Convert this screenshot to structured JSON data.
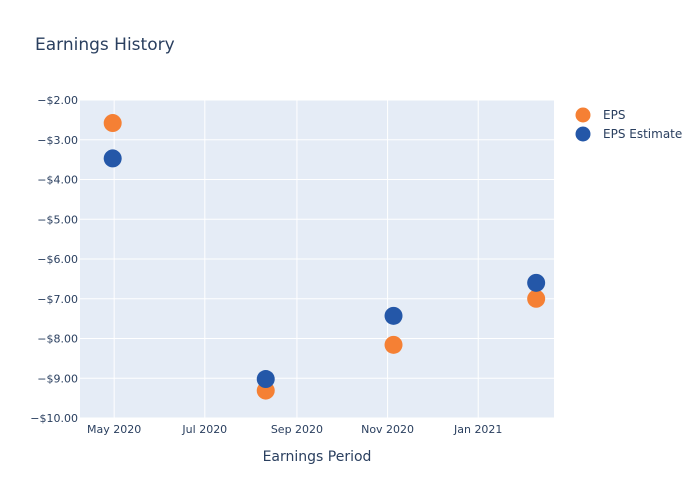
{
  "chart_data": {
    "type": "scatter",
    "title": "Earnings History",
    "xlabel": "Earnings Period",
    "ylabel": "",
    "x_ticks": [
      "May 2020",
      "Jul 2020",
      "Sep 2020",
      "Nov 2020",
      "Jan 2021"
    ],
    "x_tick_dates": [
      "2020-05-01",
      "2020-07-01",
      "2020-09-01",
      "2020-11-01",
      "2021-01-01"
    ],
    "xlim": [
      "2020-04-08",
      "2021-02-21"
    ],
    "y_ticks": [
      "−$2.00",
      "−$3.00",
      "−$4.00",
      "−$5.00",
      "−$6.00",
      "−$7.00",
      "−$8.00",
      "−$9.00",
      "−$10.00"
    ],
    "y_tick_values": [
      -2,
      -3,
      -4,
      -5,
      -6,
      -7,
      -8,
      -9,
      -10
    ],
    "ylim": [
      -10,
      -2
    ],
    "grid": true,
    "legend_position": "top-right",
    "series": [
      {
        "name": "EPS",
        "color": "#f58034",
        "points": [
          {
            "x": "2020-04-30",
            "y": -2.58
          },
          {
            "x": "2020-08-11",
            "y": -9.31
          },
          {
            "x": "2020-11-05",
            "y": -8.16
          },
          {
            "x": "2021-02-09",
            "y": -7.0
          }
        ]
      },
      {
        "name": "EPS Estimate",
        "color": "#2457a8",
        "points": [
          {
            "x": "2020-04-30",
            "y": -3.47
          },
          {
            "x": "2020-08-11",
            "y": -9.02
          },
          {
            "x": "2020-11-05",
            "y": -7.43
          },
          {
            "x": "2021-02-09",
            "y": -6.6
          }
        ]
      }
    ]
  }
}
